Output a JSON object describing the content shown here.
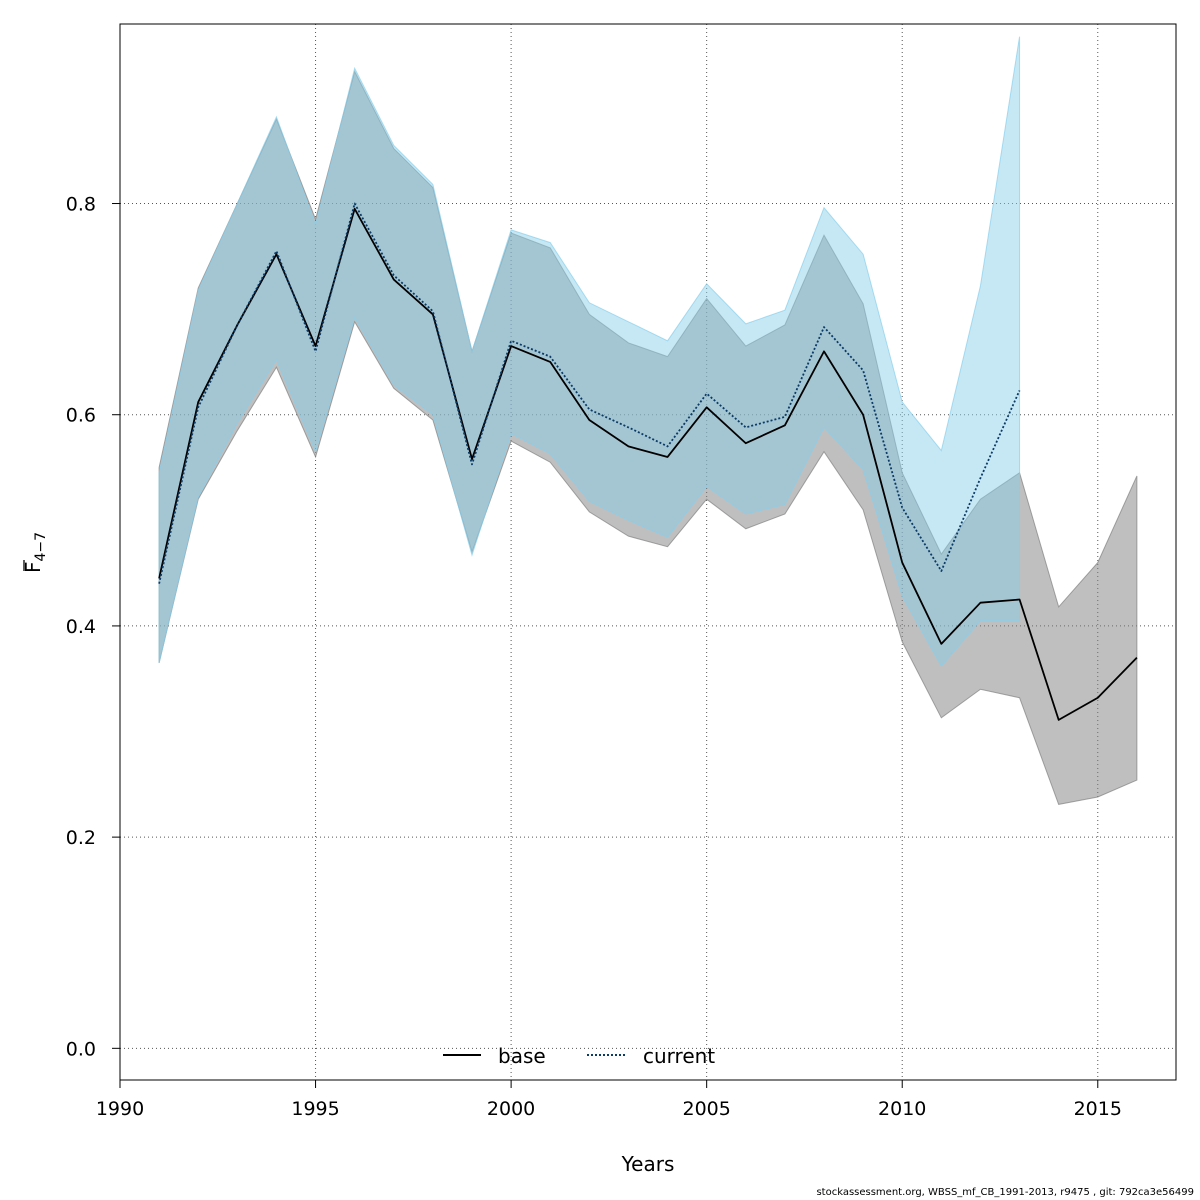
{
  "chart_data": {
    "type": "line",
    "xlabel": "Years",
    "ylabel_main": "F",
    "ylabel_sub": "4−7",
    "xlim": [
      1990,
      2017
    ],
    "ylim": [
      -0.03,
      0.97
    ],
    "xticks": [
      1990,
      1995,
      2000,
      2005,
      2010,
      2015
    ],
    "yticks": [
      0.0,
      0.2,
      0.4,
      0.6,
      0.8
    ],
    "ytick_labels": [
      "0.0",
      "0.2",
      "0.4",
      "0.6",
      "0.8"
    ],
    "grid": true,
    "legend_position": "bottom-center",
    "series": [
      {
        "name": "base",
        "line_style": "solid",
        "line_color": "#000000",
        "band_color": "#808080",
        "x": [
          1991,
          1992,
          1993,
          1994,
          1995,
          1996,
          1997,
          1998,
          1999,
          2000,
          2001,
          2002,
          2003,
          2004,
          2005,
          2006,
          2007,
          2008,
          2009,
          2010,
          2011,
          2012,
          2013,
          2014,
          2015,
          2016
        ],
        "y": [
          0.445,
          0.612,
          0.685,
          0.752,
          0.665,
          0.795,
          0.728,
          0.695,
          0.558,
          0.665,
          0.65,
          0.595,
          0.57,
          0.56,
          0.607,
          0.573,
          0.59,
          0.66,
          0.6,
          0.46,
          0.383,
          0.422,
          0.425,
          0.311,
          0.332,
          0.37
        ],
        "low": [
          0.365,
          0.52,
          0.585,
          0.645,
          0.56,
          0.688,
          0.625,
          0.595,
          0.47,
          0.575,
          0.555,
          0.508,
          0.485,
          0.475,
          0.52,
          0.492,
          0.506,
          0.565,
          0.51,
          0.385,
          0.313,
          0.34,
          0.332,
          0.231,
          0.238,
          0.254
        ],
        "high": [
          0.55,
          0.72,
          0.8,
          0.88,
          0.785,
          0.925,
          0.852,
          0.815,
          0.66,
          0.772,
          0.758,
          0.695,
          0.668,
          0.655,
          0.71,
          0.665,
          0.685,
          0.77,
          0.705,
          0.545,
          0.468,
          0.52,
          0.545,
          0.418,
          0.46,
          0.542
        ]
      },
      {
        "name": "current",
        "line_style": "dotted",
        "line_color": "#0a3a66",
        "band_color": "#87ceeb",
        "x": [
          1991,
          1992,
          1993,
          1994,
          1995,
          1996,
          1997,
          1998,
          1999,
          2000,
          2001,
          2002,
          2003,
          2004,
          2005,
          2006,
          2007,
          2008,
          2009,
          2010,
          2011,
          2012,
          2013
        ],
        "y": [
          0.44,
          0.607,
          0.685,
          0.755,
          0.66,
          0.8,
          0.732,
          0.698,
          0.553,
          0.67,
          0.655,
          0.605,
          0.588,
          0.57,
          0.62,
          0.588,
          0.598,
          0.683,
          0.642,
          0.512,
          0.452,
          0.54,
          0.623
        ],
        "low": [
          0.365,
          0.522,
          0.592,
          0.652,
          0.565,
          0.692,
          0.628,
          0.6,
          0.467,
          0.582,
          0.563,
          0.518,
          0.5,
          0.484,
          0.532,
          0.506,
          0.515,
          0.588,
          0.548,
          0.428,
          0.362,
          0.405,
          0.405
        ],
        "high": [
          0.545,
          0.718,
          0.8,
          0.882,
          0.78,
          0.928,
          0.855,
          0.818,
          0.66,
          0.775,
          0.763,
          0.706,
          0.688,
          0.67,
          0.724,
          0.686,
          0.699,
          0.796,
          0.752,
          0.612,
          0.566,
          0.722,
          0.958
        ]
      }
    ]
  },
  "footer": {
    "text": "stockassessment.org, WBSS_mf_CB_1991-2013, r9475 , git: 792ca3e56499"
  }
}
